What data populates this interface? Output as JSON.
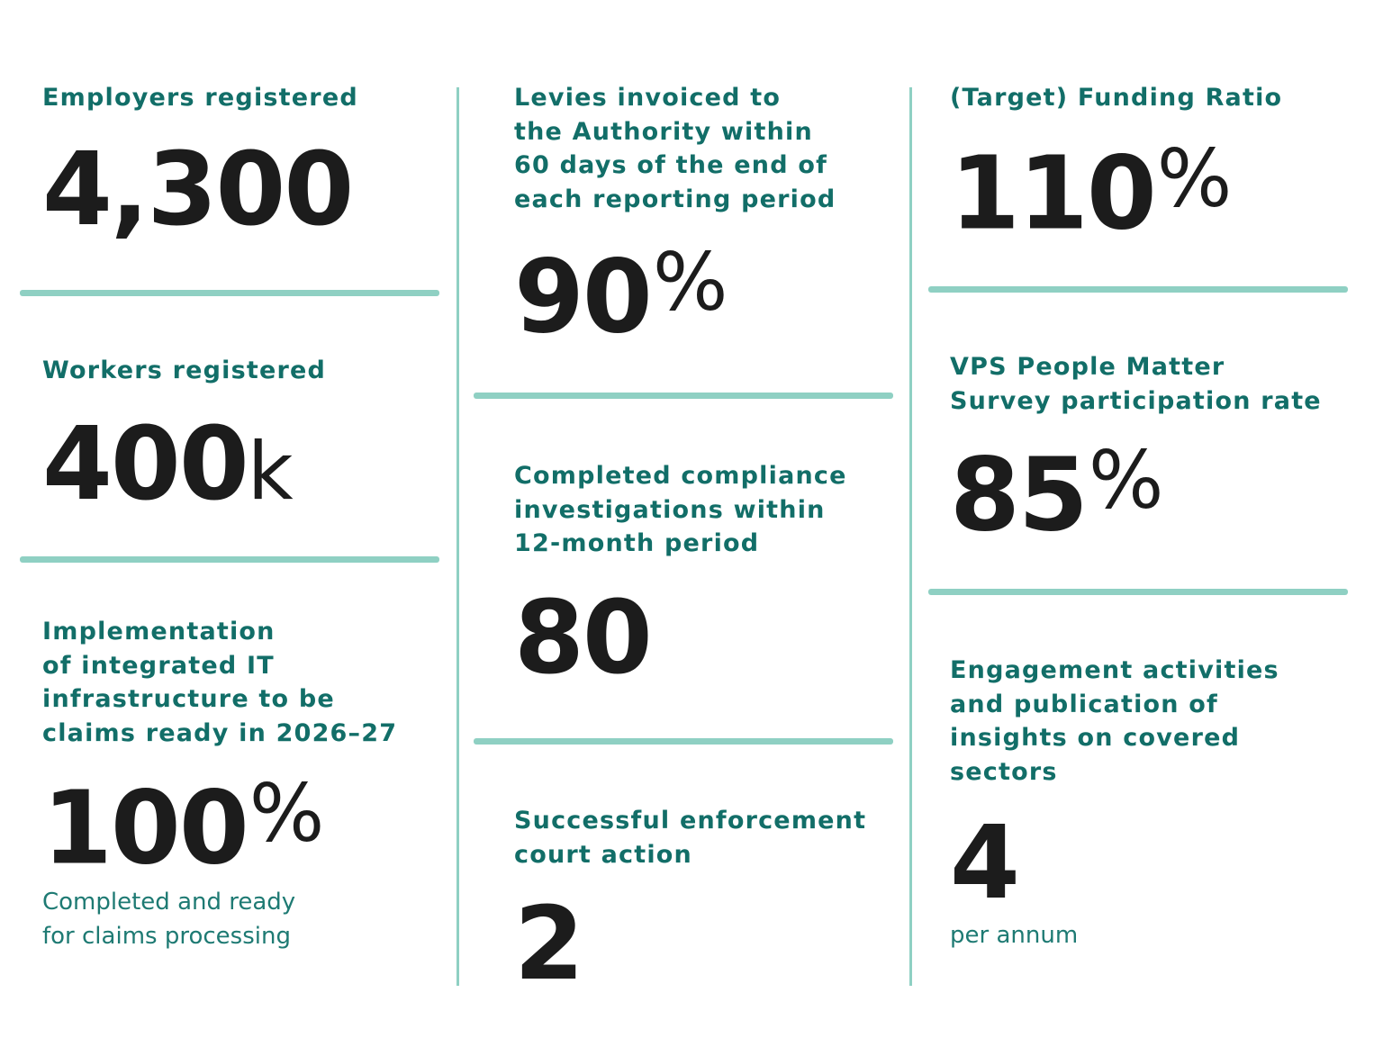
{
  "columns": [
    {
      "items": [
        {
          "label_lines": [
            "Employers registered"
          ],
          "value": "4,300"
        },
        {
          "label_lines": [
            "Workers registered"
          ],
          "value": "400",
          "unit": "k"
        },
        {
          "label_lines": [
            "Implementation",
            "of integrated IT",
            "infrastructure to be",
            "claims ready in 2026–27"
          ],
          "value": "100",
          "unit": "%",
          "note_lines": [
            "Completed and ready",
            "for claims processing"
          ]
        }
      ]
    },
    {
      "items": [
        {
          "label_lines": [
            "Levies invoiced to",
            "the Authority within",
            "60 days of the end of",
            "each reporting period"
          ],
          "value": "90",
          "unit": "%"
        },
        {
          "label_lines": [
            "Completed compliance",
            "investigations within",
            "12-month period"
          ],
          "value": "80"
        },
        {
          "label_lines": [
            "Successful enforcement",
            "court action"
          ],
          "value": "2"
        }
      ]
    },
    {
      "items": [
        {
          "label_lines": [
            "(Target) Funding Ratio"
          ],
          "value": "110",
          "unit": "%"
        },
        {
          "label_lines": [
            "VPS People Matter",
            "Survey participation rate"
          ],
          "value": "85",
          "unit": "%"
        },
        {
          "label_lines": [
            "Engagement activities",
            "and publication of",
            "insights on covered",
            "sectors"
          ],
          "value": "4",
          "note_lines": [
            "per annum"
          ]
        }
      ]
    }
  ]
}
